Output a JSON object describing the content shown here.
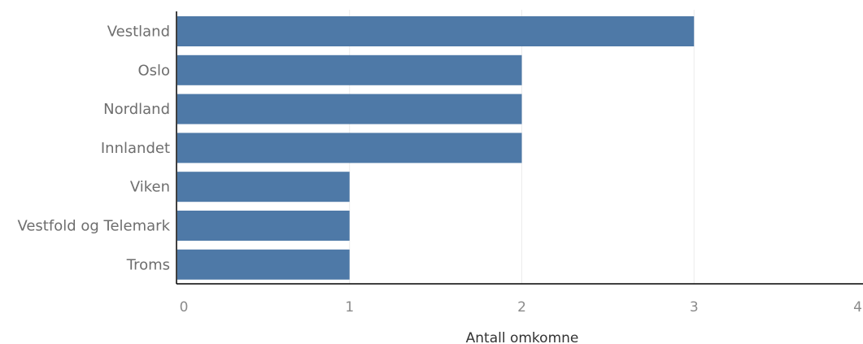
{
  "chart_data": {
    "type": "bar",
    "orientation": "horizontal",
    "categories": [
      "Vestland",
      "Oslo",
      "Nordland",
      "Innlandet",
      "Viken",
      "Vestfold og Telemark",
      "Troms"
    ],
    "values": [
      3,
      2,
      2,
      2,
      1,
      1,
      1
    ],
    "title": "",
    "xlabel": "Antall omkomne",
    "ylabel": "",
    "xlim": [
      0,
      4
    ],
    "xticks": [
      0,
      1,
      2,
      3,
      4
    ],
    "grid": "vertical",
    "colors": {
      "bar": "#4e79a7",
      "grid": "#ececec",
      "axis": "#000000",
      "category_text": "#6e6e6e",
      "tick_text": "#8a8a8a",
      "axis_title_text": "#333333"
    }
  }
}
